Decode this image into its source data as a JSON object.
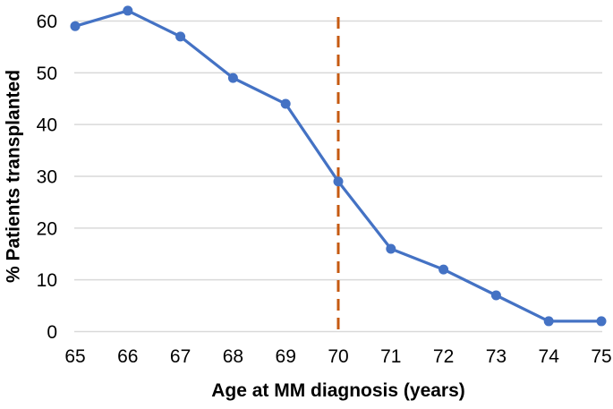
{
  "chart_data": {
    "type": "line",
    "title": "",
    "x": [
      65,
      66,
      67,
      68,
      69,
      70,
      71,
      72,
      73,
      74,
      75
    ],
    "values": [
      59,
      62,
      57,
      49,
      44,
      29,
      16,
      12,
      7,
      2,
      2
    ],
    "xlabel": "Age at MM diagnosis (years)",
    "ylabel": "% Patients transplanted",
    "xlim": [
      65,
      75
    ],
    "ylim": [
      0,
      65
    ],
    "yticks": [
      0,
      10,
      20,
      30,
      40,
      50,
      60
    ],
    "xticks": [
      65,
      66,
      67,
      68,
      69,
      70,
      71,
      72,
      73,
      74,
      75
    ],
    "grid": "horizontal-only",
    "legend": "none",
    "line_color": "#4472C4",
    "marker": "circle",
    "marker_color": "#4472C4",
    "gridline_color": "#D9D9D9",
    "axis_text_color": "#000000",
    "reference_line": {
      "axis": "x",
      "value": 70,
      "style": "dashed",
      "color": "#C55A11"
    }
  }
}
